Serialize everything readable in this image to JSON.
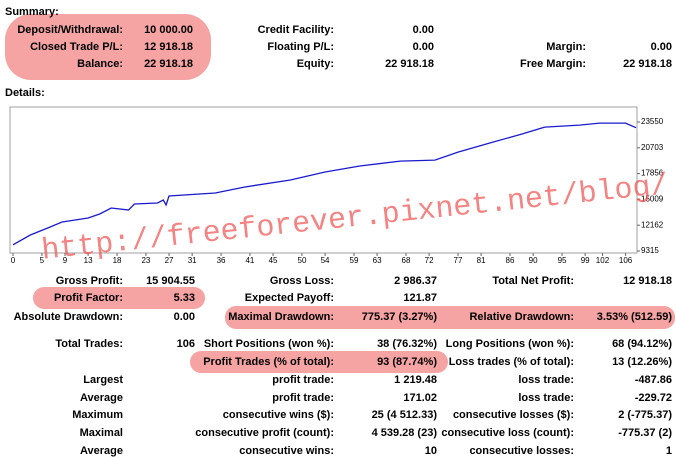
{
  "header": {
    "summary": "Summary:",
    "details": "Details:"
  },
  "summary": {
    "rows": [
      {
        "c1": [
          "Deposit/Withdrawal:",
          "10 000.00"
        ],
        "c2": [
          "Credit Facility:",
          "0.00"
        ]
      },
      {
        "c1": [
          "Closed Trade P/L:",
          "12 918.18"
        ],
        "c2": [
          "Floating P/L:",
          "0.00"
        ],
        "c3": [
          "Margin:",
          "0.00"
        ]
      },
      {
        "c1": [
          "Balance:",
          "22 918.18"
        ],
        "c2": [
          "Equity:",
          "22 918.18"
        ],
        "c3": [
          "Free Margin:",
          "22 918.18"
        ]
      }
    ]
  },
  "chart_data": {
    "type": "line",
    "x": [
      0,
      3,
      6,
      8.5,
      13,
      15,
      17,
      20,
      21,
      25,
      26,
      26.5,
      27,
      35,
      40,
      48,
      54,
      60,
      67,
      73,
      77,
      82.5,
      88,
      92,
      98,
      101.5,
      106,
      107.8
    ],
    "series": [
      {
        "color": "#1a1acc",
        "values": [
          10000,
          11080,
          11850,
          12510,
          12955,
          13400,
          14060,
          13840,
          14500,
          14610,
          14940,
          14390,
          15380,
          15710,
          16370,
          17150,
          18030,
          18690,
          19240,
          19350,
          20230,
          21230,
          22220,
          22990,
          23210,
          23430,
          23430,
          22918
        ]
      }
    ],
    "xlim": [
      0,
      107.8
    ],
    "xticks": [
      0,
      5,
      9,
      13,
      18,
      23,
      27,
      31,
      36,
      41,
      45,
      50,
      54,
      59,
      63,
      68,
      72,
      77,
      81,
      86,
      90,
      95,
      99,
      102,
      106
    ],
    "ylim": [
      9315,
      23550
    ],
    "yticks": [
      9315,
      12162,
      15009,
      17856,
      20703,
      23550
    ],
    "watermark": "http://freeforever.pixnet.net/blog/"
  },
  "stats": {
    "rows": [
      {
        "c1": [
          "Gross Profit:",
          "15 904.55"
        ],
        "c2": [
          "Gross Loss:",
          "2 986.37"
        ],
        "c3": [
          "Total Net Profit:",
          "12 918.18"
        ]
      },
      {
        "c1": [
          "Profit Factor:",
          "5.33"
        ],
        "c2": [
          "Expected Payoff:",
          "121.87"
        ]
      },
      {
        "c1": [
          "Absolute Drawdown:",
          "0.00"
        ],
        "c2": [
          "Maximal Drawdown:",
          "775.37 (3.27%)"
        ],
        "c3": [
          "Relative Drawdown:",
          "3.53% (512.59)"
        ]
      },
      {
        "c1": [
          "Total Trades:",
          "106"
        ],
        "c2": [
          "Short Positions (won %):",
          "38 (76.32%)"
        ],
        "c3": [
          "Long Positions (won %):",
          "68 (94.12%)"
        ]
      },
      {
        "c2": [
          "Profit Trades (% of total):",
          "93 (87.74%)"
        ],
        "c3": [
          "Loss trades (% of total):",
          "13 (12.26%)"
        ]
      },
      {
        "c1": [
          "Largest"
        ],
        "c2": [
          "profit trade:",
          "1 219.48"
        ],
        "c3": [
          "loss trade:",
          "-487.86"
        ]
      },
      {
        "c1": [
          "Average"
        ],
        "c2": [
          "profit trade:",
          "171.02"
        ],
        "c3": [
          "loss trade:",
          "-229.72"
        ]
      },
      {
        "c1": [
          "Maximum"
        ],
        "c2": [
          "consecutive wins ($):",
          "25 (4 512.33)"
        ],
        "c3": [
          "consecutive losses ($):",
          "2 (-775.37)"
        ]
      },
      {
        "c1": [
          "Maximal"
        ],
        "c2": [
          "consecutive profit (count):",
          "4 539.28 (23)"
        ],
        "c3": [
          "consecutive loss (count):",
          "-775.37 (2)"
        ]
      },
      {
        "c1": [
          "Average"
        ],
        "c2": [
          "consecutive wins:",
          "10"
        ],
        "c3": [
          "consecutive losses:",
          "1"
        ]
      }
    ]
  }
}
